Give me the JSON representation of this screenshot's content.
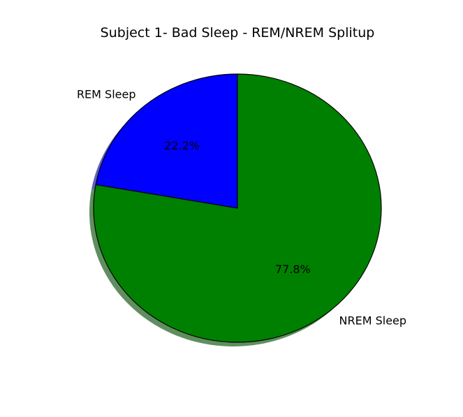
{
  "chart_data": {
    "type": "pie",
    "title": "Subject 1- Bad Sleep - REM/NREM Splitup",
    "slices": [
      {
        "label": "REM Sleep",
        "value": 22.2,
        "pct_label": "22.2%",
        "color": "#0000ff"
      },
      {
        "label": "NREM Sleep",
        "value": 77.8,
        "pct_label": "77.8%",
        "color": "#008000"
      }
    ],
    "start_angle_deg": 90,
    "direction": "counterclockwise",
    "shadow": true,
    "edge_color": "#000000"
  }
}
